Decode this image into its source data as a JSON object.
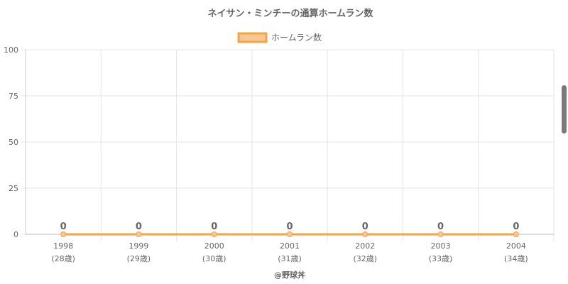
{
  "chart_data": {
    "type": "line",
    "title": "ネイサン・ミンチーの通算ホームラン数",
    "categories": [
      "1998",
      "1999",
      "2000",
      "2001",
      "2002",
      "2003",
      "2004"
    ],
    "age_labels": [
      "(28歳)",
      "(29歳)",
      "(30歳)",
      "(31歳)",
      "(32歳)",
      "(33歳)",
      "(34歳)"
    ],
    "series": [
      {
        "name": "ホームラン数",
        "values": [
          0,
          0,
          0,
          0,
          0,
          0,
          0
        ],
        "color": "#f4a347",
        "fill": "#f8c894"
      }
    ],
    "ylim": [
      0,
      100
    ],
    "yticks": [
      0,
      25,
      50,
      75,
      100
    ],
    "grid": true,
    "legend": "top-center",
    "credit": "@野球丼"
  }
}
